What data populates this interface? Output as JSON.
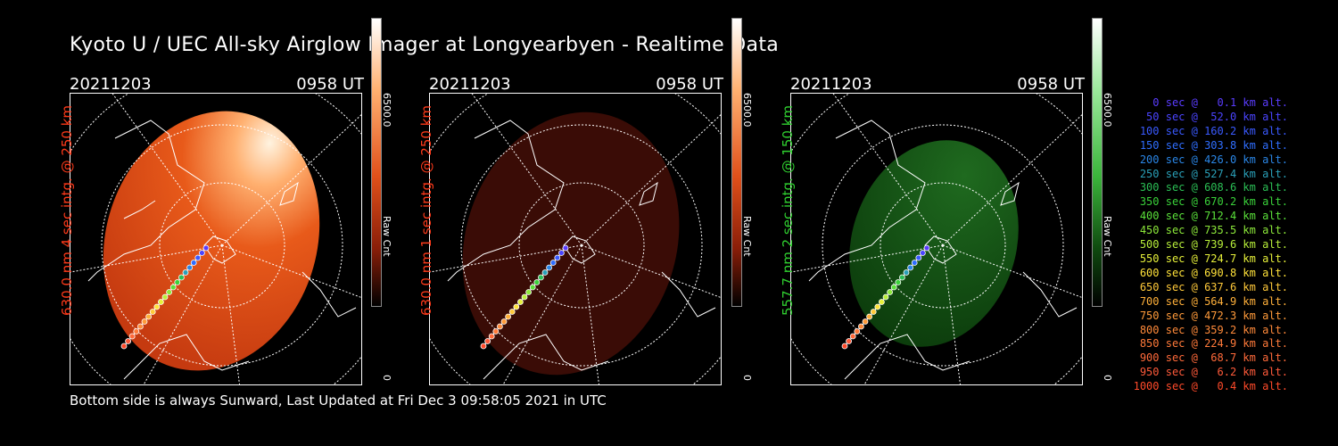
{
  "title": "Kyoto U / UEC All-sky Airglow Imager at Longyearbyen - Realtime Data",
  "footer": "Bottom side is always Sunward, Last Updated at Fri Dec  3 09:58:05 2021 in UTC",
  "panels": [
    {
      "date": "20211203",
      "time": "0958 UT",
      "label": "630.0 nm 4 sec intg. @ 250 km",
      "label_color": "#ff3a1a",
      "cb_max": "6500.0",
      "cb_min": "0",
      "cb_unit": "Raw Cnt"
    },
    {
      "date": "20211203",
      "time": "0958 UT",
      "label": "630.0 nm 1 sec intg. @ 250 km",
      "label_color": "#ff3a1a",
      "cb_max": "6500.0",
      "cb_min": "0",
      "cb_unit": "Raw Cnt"
    },
    {
      "date": "20211203",
      "time": "0958 UT",
      "label": "557.7 nm 2 sec intg. @ 150 km",
      "label_color": "#2fcf2f",
      "cb_max": "6500.0",
      "cb_min": "0",
      "cb_unit": "Raw Cnt"
    }
  ],
  "legend": [
    {
      "text": "0 sec @   0.1 km alt.",
      "color": "#5a3cff"
    },
    {
      "text": "50 sec @  52.0 km alt.",
      "color": "#4a44ff"
    },
    {
      "text": "100 sec @ 160.2 km alt.",
      "color": "#3a5aff"
    },
    {
      "text": "150 sec @ 303.8 km alt.",
      "color": "#2f6eff"
    },
    {
      "text": "200 sec @ 426.0 km alt.",
      "color": "#2a86e6"
    },
    {
      "text": "250 sec @ 527.4 km alt.",
      "color": "#2aa0b8"
    },
    {
      "text": "300 sec @ 608.6 km alt.",
      "color": "#2bbf55"
    },
    {
      "text": "350 sec @ 670.2 km alt.",
      "color": "#3ad23a"
    },
    {
      "text": "400 sec @ 712.4 km alt.",
      "color": "#5ae03a"
    },
    {
      "text": "450 sec @ 735.5 km alt.",
      "color": "#8ce83a"
    },
    {
      "text": "500 sec @ 739.6 km alt.",
      "color": "#b8ef3a"
    },
    {
      "text": "550 sec @ 724.7 km alt.",
      "color": "#e6f03a"
    },
    {
      "text": "600 sec @ 690.8 km alt.",
      "color": "#ffe23a"
    },
    {
      "text": "650 sec @ 637.6 km alt.",
      "color": "#ffc93a"
    },
    {
      "text": "700 sec @ 564.9 km alt.",
      "color": "#ffb03a"
    },
    {
      "text": "750 sec @ 472.3 km alt.",
      "color": "#ff9a3a"
    },
    {
      "text": "800 sec @ 359.2 km alt.",
      "color": "#ff8a3a"
    },
    {
      "text": "850 sec @ 224.9 km alt.",
      "color": "#ff7a3a"
    },
    {
      "text": "900 sec @  68.7 km alt.",
      "color": "#ff6a3a"
    },
    {
      "text": "950 sec @   6.2 km alt.",
      "color": "#ff5a3a"
    },
    {
      "text": "1000 sec @   0.4 km alt.",
      "color": "#ff4a2a"
    }
  ]
}
